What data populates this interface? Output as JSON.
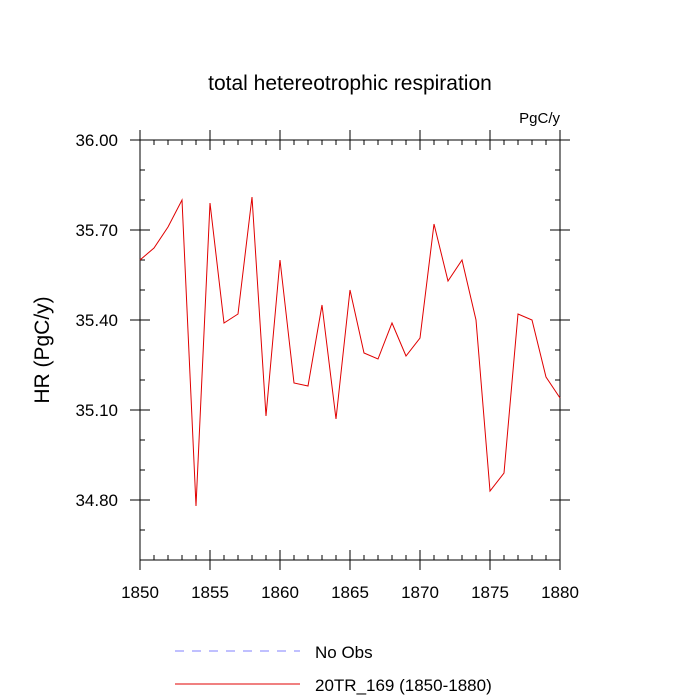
{
  "chart_data": {
    "type": "line",
    "title": "total hetereotrophic respiration",
    "units_label": "PgC/y",
    "ylabel": "HR  (PgC/y)",
    "xlabel": "",
    "xlim": [
      1850,
      1880
    ],
    "ylim": [
      34.6,
      36.0
    ],
    "x_ticks": [
      1850,
      1855,
      1860,
      1865,
      1870,
      1875,
      1880
    ],
    "x_tick_labels": [
      "1850",
      "1855",
      "1860",
      "1865",
      "1870",
      "1875",
      "1880"
    ],
    "y_ticks": [
      34.8,
      35.1,
      35.4,
      35.7,
      36.0
    ],
    "y_tick_labels": [
      "34.80",
      "35.10",
      "35.40",
      "35.70",
      "36.00"
    ],
    "grid": false,
    "legend_position": "bottom",
    "series": [
      {
        "name": "No Obs",
        "color": "#8080ff",
        "style": "dashed",
        "x": [],
        "values": []
      },
      {
        "name": "20TR_169 (1850-1880)",
        "color": "#e00000",
        "style": "solid",
        "x": [
          1850,
          1851,
          1852,
          1853,
          1854,
          1855,
          1856,
          1857,
          1858,
          1859,
          1860,
          1861,
          1862,
          1863,
          1864,
          1865,
          1866,
          1867,
          1868,
          1869,
          1870,
          1871,
          1872,
          1873,
          1874,
          1875,
          1876,
          1877,
          1878,
          1879,
          1880
        ],
        "values": [
          35.6,
          35.64,
          35.71,
          35.8,
          34.78,
          35.79,
          35.39,
          35.42,
          35.81,
          35.08,
          35.6,
          35.19,
          35.18,
          35.45,
          35.07,
          35.5,
          35.29,
          35.27,
          35.39,
          35.28,
          35.34,
          35.72,
          35.53,
          35.6,
          35.4,
          34.83,
          34.89,
          35.42,
          35.4,
          35.21,
          35.14
        ]
      }
    ]
  }
}
